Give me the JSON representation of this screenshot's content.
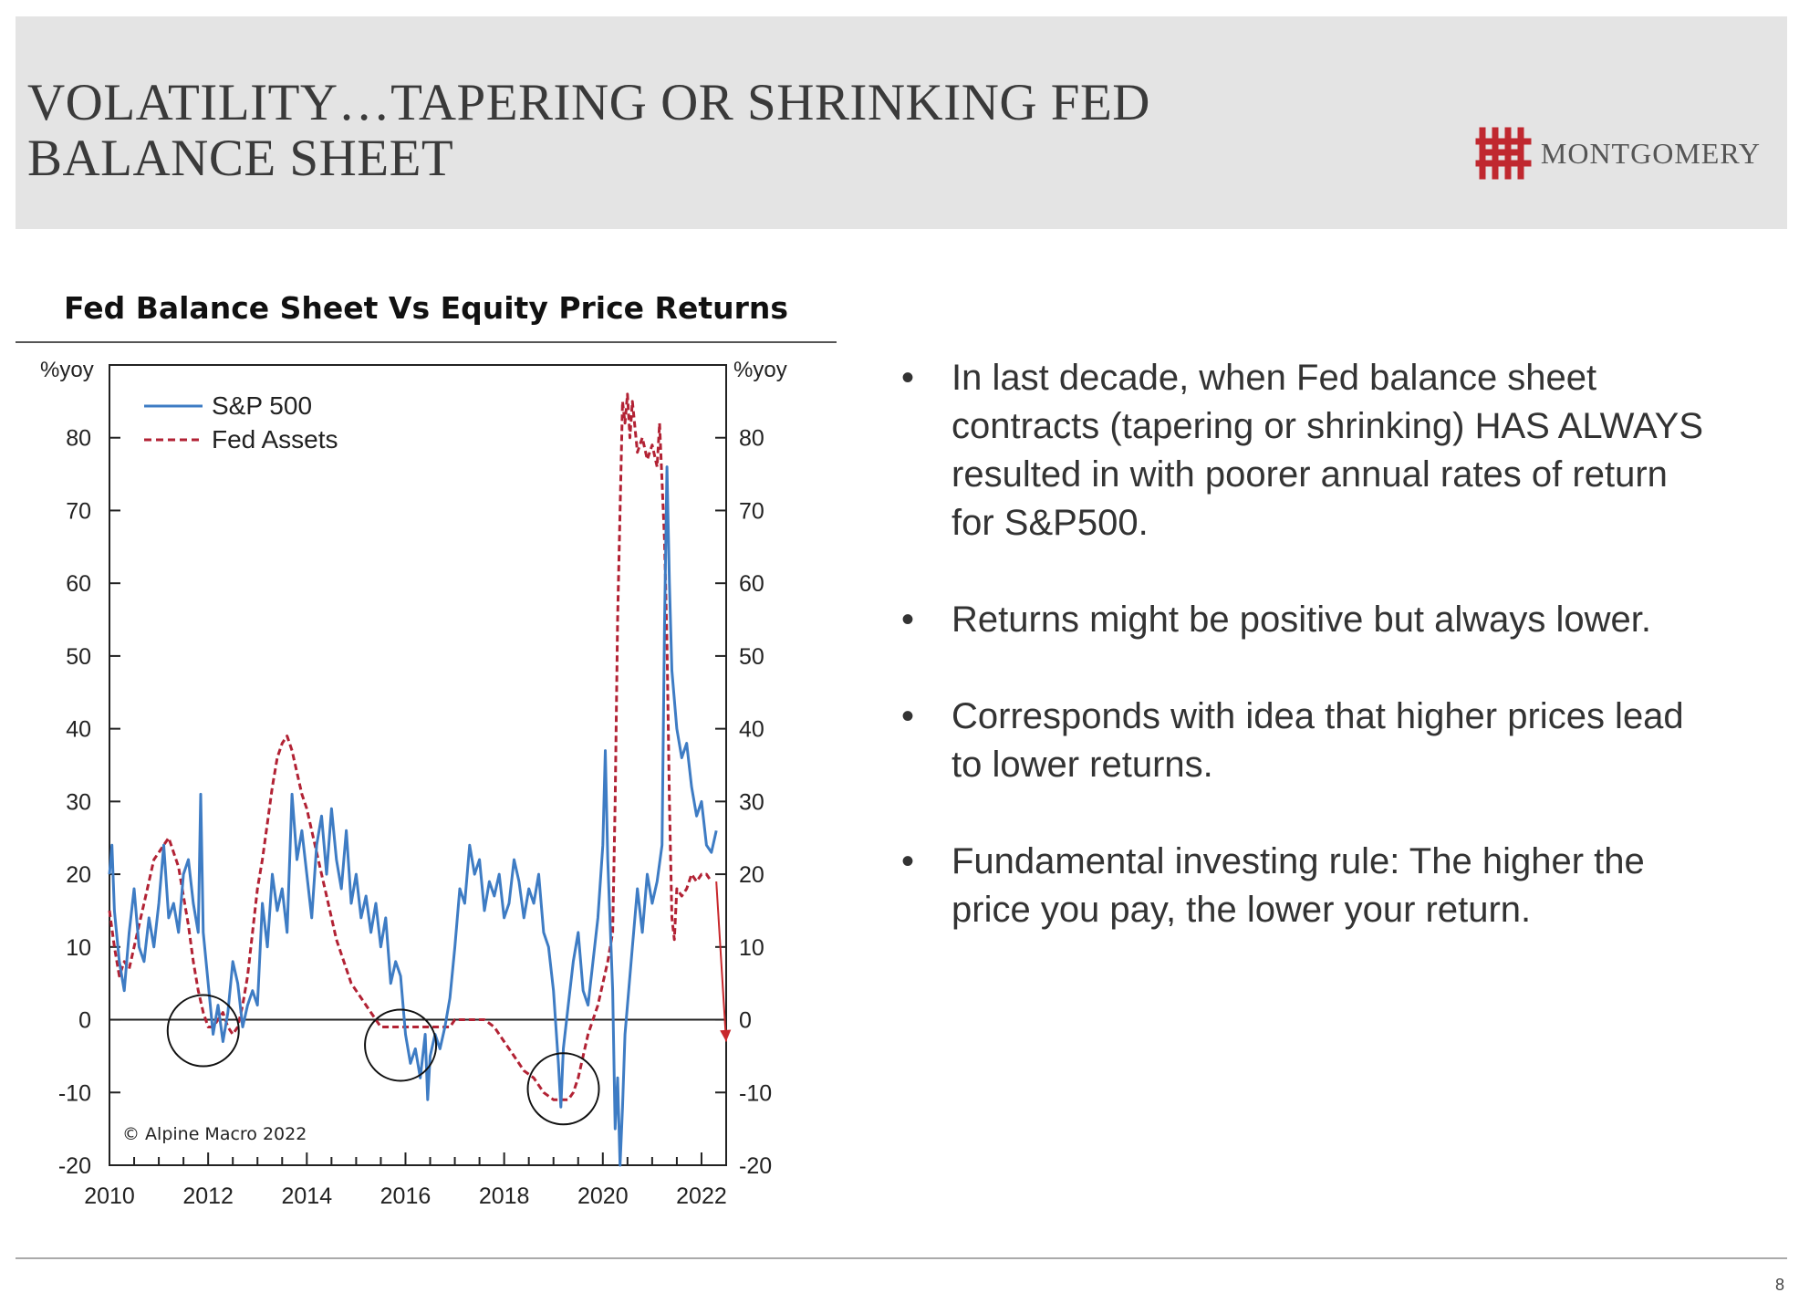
{
  "slide": {
    "title_line1": "VOLATILITY…TAPERING OR SHRINKING FED",
    "title_line2": "BALANCE SHEET",
    "logo_text": "MONTGOMERY",
    "page_number": "8"
  },
  "bullets": [
    {
      "text": "In last decade, when Fed balance sheet contracts (tapering or shrinking) HAS ALWAYS resulted in with poorer annual rates of return for S&P500."
    },
    {
      "text": "Returns might be positive but always lower."
    },
    {
      "text": "Corresponds with idea that higher prices lead to lower returns."
    },
    {
      "text": "Fundamental investing rule: The higher the price you pay, the lower your return."
    }
  ],
  "chart_data": {
    "type": "line",
    "title": "Fed Balance Sheet Vs Equity Price Returns",
    "ylabel_left": "%yoy",
    "ylabel_right": "%yoy",
    "source": "© Alpine Macro 2022",
    "xlim": [
      2010,
      2022.5
    ],
    "ylim": [
      -20,
      90
    ],
    "x_ticks": [
      2010,
      2012,
      2014,
      2016,
      2018,
      2020,
      2022
    ],
    "x_tick_labels": [
      "2010",
      "2012",
      "2014",
      "2016",
      "2018",
      "2020",
      "2022"
    ],
    "y_ticks": [
      -20,
      -10,
      0,
      10,
      20,
      30,
      40,
      50,
      60,
      70,
      80
    ],
    "y_tick_labels": [
      "-20",
      "-10",
      "0",
      "10",
      "20",
      "30",
      "40",
      "50",
      "60",
      "70",
      "80"
    ],
    "legend": "top-left",
    "series": [
      {
        "name": "S&P 500",
        "color": "#3e7cc4",
        "style": "solid",
        "points": [
          [
            2010.0,
            20
          ],
          [
            2010.05,
            24
          ],
          [
            2010.1,
            15
          ],
          [
            2010.2,
            8
          ],
          [
            2010.3,
            4
          ],
          [
            2010.4,
            12
          ],
          [
            2010.5,
            18
          ],
          [
            2010.6,
            10
          ],
          [
            2010.7,
            8
          ],
          [
            2010.8,
            14
          ],
          [
            2010.9,
            10
          ],
          [
            2011.0,
            16
          ],
          [
            2011.1,
            24
          ],
          [
            2011.2,
            14
          ],
          [
            2011.3,
            16
          ],
          [
            2011.4,
            12
          ],
          [
            2011.5,
            20
          ],
          [
            2011.6,
            22
          ],
          [
            2011.7,
            16
          ],
          [
            2011.8,
            12
          ],
          [
            2011.85,
            31
          ],
          [
            2011.9,
            12
          ],
          [
            2012.0,
            5
          ],
          [
            2012.1,
            -2
          ],
          [
            2012.2,
            2
          ],
          [
            2012.3,
            -3
          ],
          [
            2012.4,
            1
          ],
          [
            2012.5,
            8
          ],
          [
            2012.6,
            5
          ],
          [
            2012.7,
            -1
          ],
          [
            2012.8,
            2
          ],
          [
            2012.9,
            4
          ],
          [
            2013.0,
            2
          ],
          [
            2013.1,
            16
          ],
          [
            2013.2,
            10
          ],
          [
            2013.3,
            20
          ],
          [
            2013.4,
            15
          ],
          [
            2013.5,
            18
          ],
          [
            2013.6,
            12
          ],
          [
            2013.7,
            31
          ],
          [
            2013.8,
            22
          ],
          [
            2013.9,
            26
          ],
          [
            2014.0,
            20
          ],
          [
            2014.1,
            14
          ],
          [
            2014.2,
            24
          ],
          [
            2014.3,
            28
          ],
          [
            2014.4,
            20
          ],
          [
            2014.5,
            29
          ],
          [
            2014.6,
            22
          ],
          [
            2014.7,
            18
          ],
          [
            2014.8,
            26
          ],
          [
            2014.9,
            16
          ],
          [
            2015.0,
            20
          ],
          [
            2015.1,
            14
          ],
          [
            2015.2,
            17
          ],
          [
            2015.3,
            12
          ],
          [
            2015.4,
            16
          ],
          [
            2015.5,
            10
          ],
          [
            2015.6,
            14
          ],
          [
            2015.7,
            5
          ],
          [
            2015.8,
            8
          ],
          [
            2015.9,
            6
          ],
          [
            2016.0,
            -2
          ],
          [
            2016.1,
            -6
          ],
          [
            2016.2,
            -4
          ],
          [
            2016.3,
            -8
          ],
          [
            2016.4,
            -2
          ],
          [
            2016.45,
            -11
          ],
          [
            2016.5,
            -5
          ],
          [
            2016.6,
            -2
          ],
          [
            2016.7,
            -4
          ],
          [
            2016.8,
            -1
          ],
          [
            2016.9,
            3
          ],
          [
            2017.0,
            10
          ],
          [
            2017.1,
            18
          ],
          [
            2017.2,
            16
          ],
          [
            2017.3,
            24
          ],
          [
            2017.4,
            20
          ],
          [
            2017.5,
            22
          ],
          [
            2017.6,
            15
          ],
          [
            2017.7,
            19
          ],
          [
            2017.8,
            17
          ],
          [
            2017.9,
            20
          ],
          [
            2018.0,
            14
          ],
          [
            2018.1,
            16
          ],
          [
            2018.2,
            22
          ],
          [
            2018.3,
            19
          ],
          [
            2018.4,
            14
          ],
          [
            2018.5,
            18
          ],
          [
            2018.6,
            16
          ],
          [
            2018.7,
            20
          ],
          [
            2018.8,
            12
          ],
          [
            2018.9,
            10
          ],
          [
            2019.0,
            4
          ],
          [
            2019.1,
            -6
          ],
          [
            2019.15,
            -12
          ],
          [
            2019.2,
            -4
          ],
          [
            2019.3,
            2
          ],
          [
            2019.4,
            8
          ],
          [
            2019.5,
            12
          ],
          [
            2019.6,
            4
          ],
          [
            2019.7,
            2
          ],
          [
            2019.8,
            8
          ],
          [
            2019.9,
            14
          ],
          [
            2020.0,
            24
          ],
          [
            2020.05,
            37
          ],
          [
            2020.1,
            22
          ],
          [
            2020.2,
            4
          ],
          [
            2020.25,
            -15
          ],
          [
            2020.3,
            -8
          ],
          [
            2020.35,
            -20
          ],
          [
            2020.4,
            -12
          ],
          [
            2020.45,
            -2
          ],
          [
            2020.5,
            2
          ],
          [
            2020.6,
            10
          ],
          [
            2020.7,
            18
          ],
          [
            2020.8,
            12
          ],
          [
            2020.9,
            20
          ],
          [
            2021.0,
            16
          ],
          [
            2021.1,
            19
          ],
          [
            2021.2,
            24
          ],
          [
            2021.25,
            54
          ],
          [
            2021.3,
            76
          ],
          [
            2021.35,
            60
          ],
          [
            2021.4,
            48
          ],
          [
            2021.5,
            40
          ],
          [
            2021.6,
            36
          ],
          [
            2021.7,
            38
          ],
          [
            2021.8,
            32
          ],
          [
            2021.9,
            28
          ],
          [
            2022.0,
            30
          ],
          [
            2022.1,
            24
          ],
          [
            2022.2,
            23
          ],
          [
            2022.3,
            26
          ]
        ]
      },
      {
        "name": "Fed Assets",
        "color": "#b22234",
        "style": "dashed",
        "points": [
          [
            2010.0,
            15
          ],
          [
            2010.1,
            10
          ],
          [
            2010.2,
            6
          ],
          [
            2010.3,
            8
          ],
          [
            2010.4,
            7
          ],
          [
            2010.5,
            10
          ],
          [
            2010.6,
            13
          ],
          [
            2010.7,
            16
          ],
          [
            2010.8,
            19
          ],
          [
            2010.9,
            22
          ],
          [
            2011.0,
            23
          ],
          [
            2011.1,
            24
          ],
          [
            2011.2,
            25
          ],
          [
            2011.3,
            23
          ],
          [
            2011.4,
            21
          ],
          [
            2011.5,
            17
          ],
          [
            2011.6,
            13
          ],
          [
            2011.7,
            8
          ],
          [
            2011.8,
            4
          ],
          [
            2011.9,
            1
          ],
          [
            2012.0,
            -1
          ],
          [
            2012.1,
            -1
          ],
          [
            2012.2,
            0
          ],
          [
            2012.3,
            1
          ],
          [
            2012.4,
            -1
          ],
          [
            2012.5,
            -2
          ],
          [
            2012.6,
            -1
          ],
          [
            2012.7,
            2
          ],
          [
            2012.8,
            6
          ],
          [
            2012.9,
            12
          ],
          [
            2013.0,
            18
          ],
          [
            2013.1,
            22
          ],
          [
            2013.2,
            27
          ],
          [
            2013.3,
            32
          ],
          [
            2013.4,
            36
          ],
          [
            2013.5,
            38
          ],
          [
            2013.6,
            39
          ],
          [
            2013.7,
            37
          ],
          [
            2013.8,
            34
          ],
          [
            2013.9,
            31
          ],
          [
            2014.0,
            29
          ],
          [
            2014.1,
            26
          ],
          [
            2014.2,
            23
          ],
          [
            2014.3,
            20
          ],
          [
            2014.4,
            17
          ],
          [
            2014.5,
            14
          ],
          [
            2014.6,
            11
          ],
          [
            2014.7,
            9
          ],
          [
            2014.8,
            7
          ],
          [
            2014.9,
            5
          ],
          [
            2015.0,
            4
          ],
          [
            2015.1,
            3
          ],
          [
            2015.2,
            2
          ],
          [
            2015.3,
            1
          ],
          [
            2015.4,
            0
          ],
          [
            2015.5,
            -1
          ],
          [
            2015.6,
            -1
          ],
          [
            2015.7,
            -1
          ],
          [
            2015.8,
            -1
          ],
          [
            2015.9,
            -1
          ],
          [
            2016.0,
            -1
          ],
          [
            2016.1,
            -1
          ],
          [
            2016.2,
            -1
          ],
          [
            2016.3,
            -1
          ],
          [
            2016.4,
            -1
          ],
          [
            2016.5,
            -1
          ],
          [
            2016.6,
            -1
          ],
          [
            2016.7,
            -1
          ],
          [
            2016.8,
            -1
          ],
          [
            2016.9,
            -1
          ],
          [
            2017.0,
            0
          ],
          [
            2017.2,
            0
          ],
          [
            2017.4,
            0
          ],
          [
            2017.6,
            0
          ],
          [
            2017.8,
            -1
          ],
          [
            2018.0,
            -3
          ],
          [
            2018.2,
            -5
          ],
          [
            2018.4,
            -7
          ],
          [
            2018.6,
            -8
          ],
          [
            2018.8,
            -10
          ],
          [
            2019.0,
            -11
          ],
          [
            2019.2,
            -11
          ],
          [
            2019.3,
            -11
          ],
          [
            2019.4,
            -10
          ],
          [
            2019.5,
            -8
          ],
          [
            2019.6,
            -5
          ],
          [
            2019.7,
            -2
          ],
          [
            2019.8,
            0
          ],
          [
            2019.9,
            2
          ],
          [
            2020.0,
            5
          ],
          [
            2020.1,
            8
          ],
          [
            2020.2,
            12
          ],
          [
            2020.25,
            30
          ],
          [
            2020.3,
            55
          ],
          [
            2020.35,
            70
          ],
          [
            2020.4,
            85
          ],
          [
            2020.45,
            82
          ],
          [
            2020.5,
            86
          ],
          [
            2020.55,
            80
          ],
          [
            2020.6,
            85
          ],
          [
            2020.7,
            78
          ],
          [
            2020.8,
            80
          ],
          [
            2020.9,
            77
          ],
          [
            2021.0,
            79
          ],
          [
            2021.1,
            76
          ],
          [
            2021.15,
            82
          ],
          [
            2021.2,
            74
          ],
          [
            2021.25,
            66
          ],
          [
            2021.3,
            52
          ],
          [
            2021.35,
            30
          ],
          [
            2021.4,
            14
          ],
          [
            2021.45,
            11
          ],
          [
            2021.5,
            18
          ],
          [
            2021.6,
            17
          ],
          [
            2021.7,
            18
          ],
          [
            2021.8,
            20
          ],
          [
            2021.9,
            19
          ],
          [
            2022.0,
            20
          ],
          [
            2022.1,
            20
          ],
          [
            2022.2,
            19
          ]
        ]
      }
    ],
    "annotations": {
      "circles_at": [
        [
          2011.9,
          -1.5
        ],
        [
          2015.9,
          -3.5
        ],
        [
          2019.2,
          -9.5
        ]
      ],
      "arrow": {
        "from": [
          2022.3,
          19
        ],
        "to": [
          2022.5,
          -3
        ]
      }
    }
  }
}
